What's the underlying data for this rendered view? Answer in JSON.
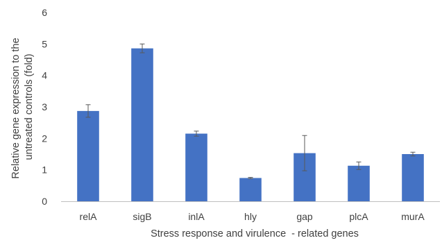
{
  "chart_data": {
    "type": "bar",
    "title": "",
    "xlabel": "Stress response and virulence  - related genes",
    "ylabel_lines": [
      "Relative gene expression to the",
      "untreated controls (fold)"
    ],
    "categories": [
      "relA",
      "sigB",
      "inlA",
      "hly",
      "gap",
      "plcA",
      "murA"
    ],
    "series": [
      {
        "values": [
          2.87,
          4.86,
          2.15,
          0.74,
          1.53,
          1.13,
          1.5
        ],
        "error_bars": [
          0.2,
          0.14,
          0.08,
          0.02,
          0.56,
          0.12,
          0.06
        ]
      }
    ],
    "ylim": [
      0,
      6
    ],
    "yticks": [
      "0",
      "1",
      "2",
      "3",
      "4",
      "5",
      "6"
    ],
    "grid": false,
    "legend": "none",
    "colors": {
      "bar": "#4472C4",
      "axis": "#BFBFBF",
      "error_bar": "#595959",
      "text": "#404040"
    }
  }
}
